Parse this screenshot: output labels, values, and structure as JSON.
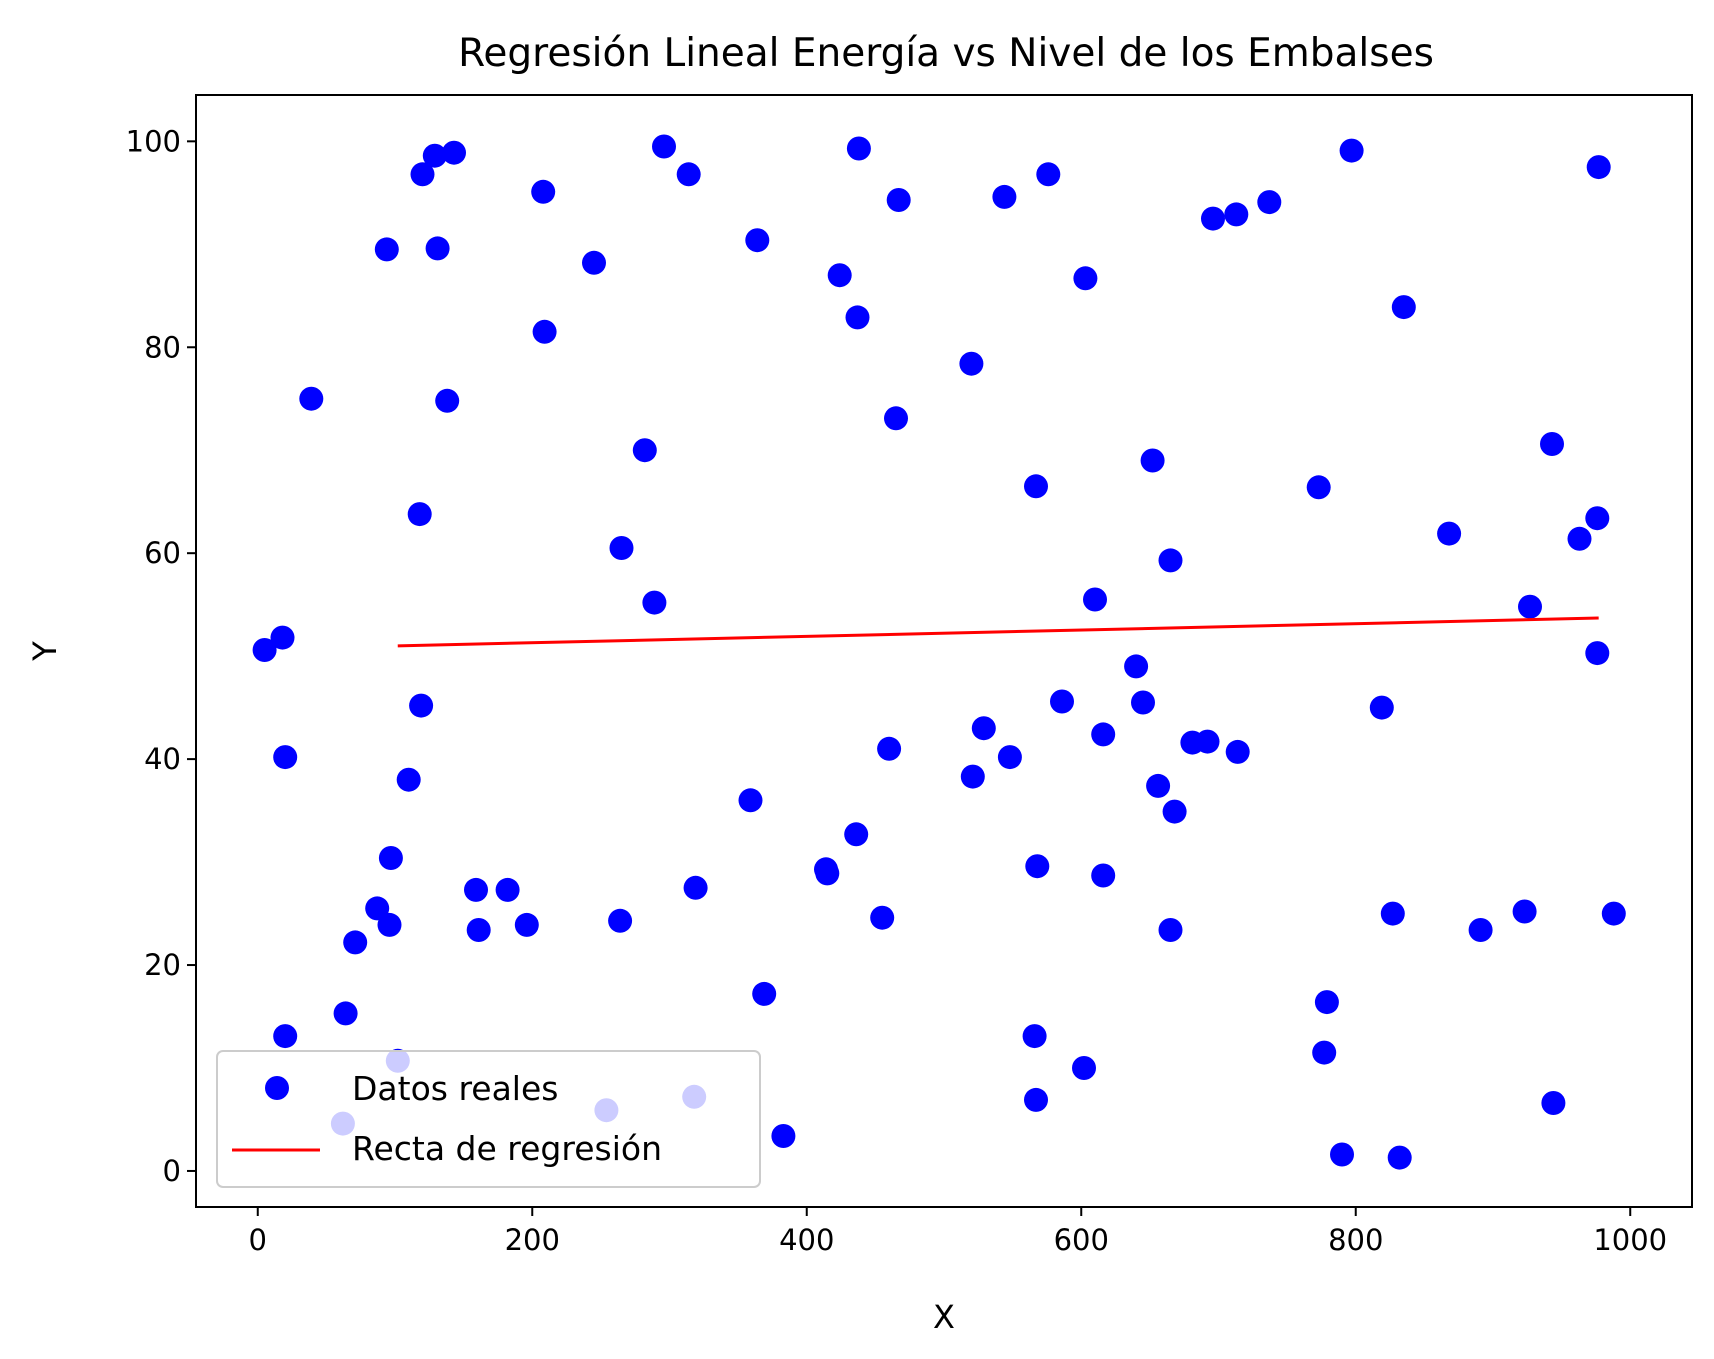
{
  "chart_data": {
    "type": "scatter",
    "title": "Regresión Lineal Energía vs Nivel de los Embalses",
    "xlabel": "X",
    "ylabel": "Y",
    "xlim": [
      -45,
      1045
    ],
    "ylim": [
      -3.5,
      104.5
    ],
    "xticks": [
      0,
      200,
      400,
      600,
      800,
      1000
    ],
    "yticks": [
      0,
      20,
      40,
      60,
      80,
      100
    ],
    "grid": false,
    "legend_position": "lower-left",
    "colors": {
      "points": "#0000ff",
      "line": "#ff0000"
    },
    "series": [
      {
        "name": "Datos reales",
        "kind": "scatter",
        "points": [
          [
            5,
            50.6
          ],
          [
            18,
            51.8
          ],
          [
            20,
            40.2
          ],
          [
            20,
            13.1
          ],
          [
            39,
            75.0
          ],
          [
            62,
            4.6
          ],
          [
            64,
            15.3
          ],
          [
            71,
            22.2
          ],
          [
            87,
            25.5
          ],
          [
            94,
            89.5
          ],
          [
            96,
            23.9
          ],
          [
            97,
            30.4
          ],
          [
            102,
            10.7
          ],
          [
            110,
            38.0
          ],
          [
            118,
            63.8
          ],
          [
            119,
            45.2
          ],
          [
            120,
            96.8
          ],
          [
            129,
            98.6
          ],
          [
            131,
            89.6
          ],
          [
            138,
            74.8
          ],
          [
            143,
            98.9
          ],
          [
            159,
            27.3
          ],
          [
            161,
            23.4
          ],
          [
            182,
            27.3
          ],
          [
            196,
            23.9
          ],
          [
            208,
            95.1
          ],
          [
            209,
            81.5
          ],
          [
            245,
            88.2
          ],
          [
            254,
            5.9
          ],
          [
            264,
            24.3
          ],
          [
            265,
            60.5
          ],
          [
            282,
            70.0
          ],
          [
            289,
            55.2
          ],
          [
            296,
            99.5
          ],
          [
            314,
            96.8
          ],
          [
            318,
            7.2
          ],
          [
            319,
            27.5
          ],
          [
            359,
            36.0
          ],
          [
            364,
            90.4
          ],
          [
            369,
            17.2
          ],
          [
            383,
            3.4
          ],
          [
            414,
            29.3
          ],
          [
            415,
            28.9
          ],
          [
            424,
            87.0
          ],
          [
            436,
            32.7
          ],
          [
            437,
            82.9
          ],
          [
            438,
            99.3
          ],
          [
            455,
            24.6
          ],
          [
            460,
            41.0
          ],
          [
            465,
            73.1
          ],
          [
            467,
            94.3
          ],
          [
            520,
            78.4
          ],
          [
            521,
            38.3
          ],
          [
            529,
            43.0
          ],
          [
            544,
            94.6
          ],
          [
            548,
            40.2
          ],
          [
            566,
            13.1
          ],
          [
            567,
            6.9
          ],
          [
            567,
            66.5
          ],
          [
            568,
            29.6
          ],
          [
            576,
            96.8
          ],
          [
            586,
            45.6
          ],
          [
            602,
            10.0
          ],
          [
            603,
            86.7
          ],
          [
            610,
            55.5
          ],
          [
            616,
            28.7
          ],
          [
            616,
            42.4
          ],
          [
            640,
            49.0
          ],
          [
            645,
            45.5
          ],
          [
            652,
            69.0
          ],
          [
            656,
            37.4
          ],
          [
            665,
            59.3
          ],
          [
            665,
            23.4
          ],
          [
            668,
            34.9
          ],
          [
            681,
            41.6
          ],
          [
            692,
            41.7
          ],
          [
            696,
            92.5
          ],
          [
            713,
            92.9
          ],
          [
            714,
            40.7
          ],
          [
            737,
            94.1
          ],
          [
            773,
            66.4
          ],
          [
            777,
            11.5
          ],
          [
            779,
            16.4
          ],
          [
            790,
            1.6
          ],
          [
            797,
            99.1
          ],
          [
            819,
            45.0
          ],
          [
            827,
            25.0
          ],
          [
            832,
            1.3
          ],
          [
            835,
            83.9
          ],
          [
            868,
            61.9
          ],
          [
            891,
            23.4
          ],
          [
            923,
            25.2
          ],
          [
            927,
            54.8
          ],
          [
            943,
            70.6
          ],
          [
            944,
            6.6
          ],
          [
            963,
            61.4
          ],
          [
            976,
            63.4
          ],
          [
            976,
            50.3
          ],
          [
            977,
            97.5
          ],
          [
            988,
            25.0
          ]
        ]
      },
      {
        "name": "Recta de regresión",
        "kind": "line",
        "x": [
          102,
          977
        ],
        "y": [
          51.0,
          53.7
        ]
      }
    ]
  }
}
